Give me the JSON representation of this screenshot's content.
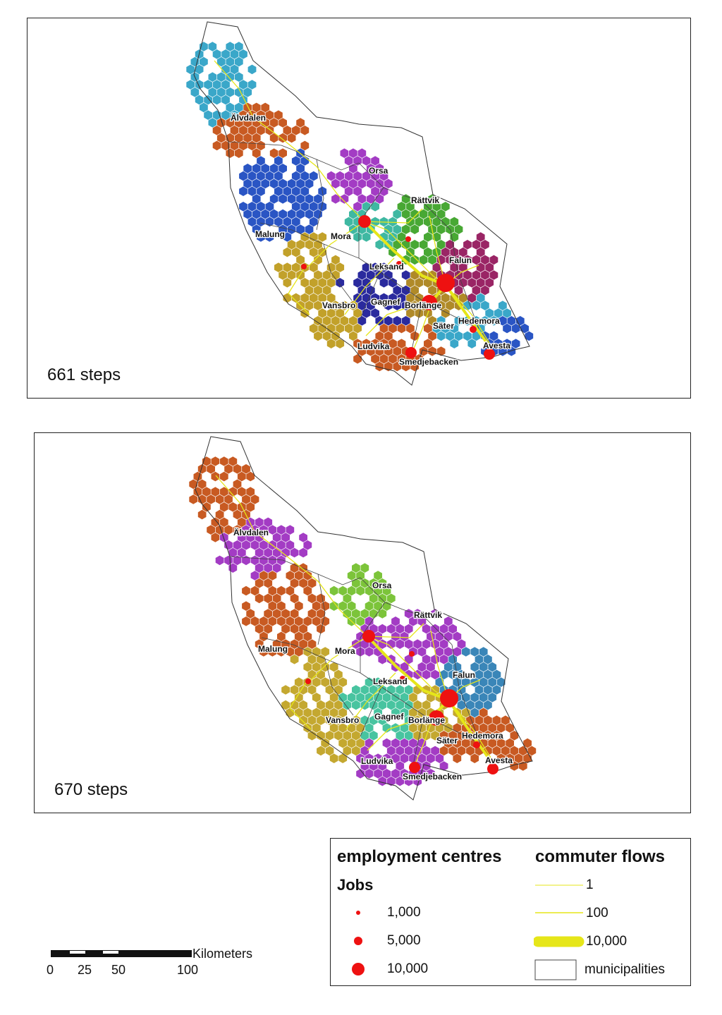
{
  "panels": [
    {
      "id": "top",
      "steps_label": "661 steps",
      "palette": [
        "#3aa7c9",
        "#c85a22",
        "#2a55c4",
        "#c2a12a",
        "#a33cc4",
        "#3fb8a2",
        "#48a834",
        "#9a2565",
        "#b08a28",
        "#2a2a9e"
      ],
      "places": [
        "Älvdalen",
        "Orsa",
        "Rättvik",
        "Malung",
        "Mora",
        "Leksand",
        "Falun",
        "Vansbro",
        "Gagnef",
        "Borlänge",
        "Säter",
        "Hedemora",
        "Ludvika",
        "Avesta",
        "Smedjebacken"
      ]
    },
    {
      "id": "bottom",
      "steps_label": "670 steps",
      "palette": [
        "#c85a22",
        "#a33cc4",
        "#c85a22",
        "#c4a830",
        "#7cc43a",
        "#a33cc4",
        "#a33cc4",
        "#3a86b8",
        "#c4a830",
        "#48c4a0"
      ],
      "places": [
        "Älvdalen",
        "Orsa",
        "Rättvik",
        "Malung",
        "Mora",
        "Leksand",
        "Falun",
        "Vansbro",
        "Gagnef",
        "Borlänge",
        "Säter",
        "Hedemora",
        "Ludvika",
        "Avesta",
        "Smedjebacken"
      ]
    }
  ],
  "legend": {
    "employment_title": "employment centres",
    "jobs_title": "Jobs",
    "jobs": [
      "1,000",
      "5,000",
      "10,000"
    ],
    "flows_title": "commuter flows",
    "flows": [
      "1",
      "100",
      "10,000"
    ],
    "municipalities": "municipalities",
    "centre_color": "#ee1111",
    "flow_color": "#e6e619"
  },
  "scalebar": {
    "unit": "Kilometers",
    "ticks": [
      "0",
      "25",
      "50",
      "100"
    ]
  }
}
